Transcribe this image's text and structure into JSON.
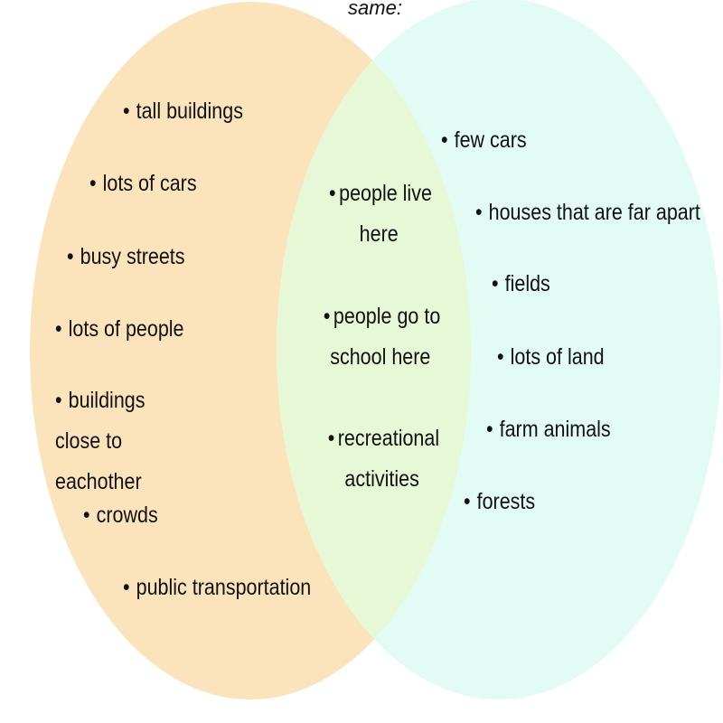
{
  "header": {
    "same_label": "same:"
  },
  "colors": {
    "left_circle": "#fbe4bc",
    "right_circle": "#e2fcf5",
    "overlap": "#e6f8d6"
  },
  "left": {
    "items": [
      "tall buildings",
      "lots of cars",
      "busy streets",
      "lots of people",
      "buildings close to eachother",
      "crowds",
      "public transportation"
    ]
  },
  "both": {
    "items": [
      "people live here",
      "people go to school here",
      "recreational activities"
    ]
  },
  "right": {
    "items": [
      "few cars",
      "houses that are far apart",
      "fields",
      "lots of land",
      "farm animals",
      "forests"
    ]
  }
}
